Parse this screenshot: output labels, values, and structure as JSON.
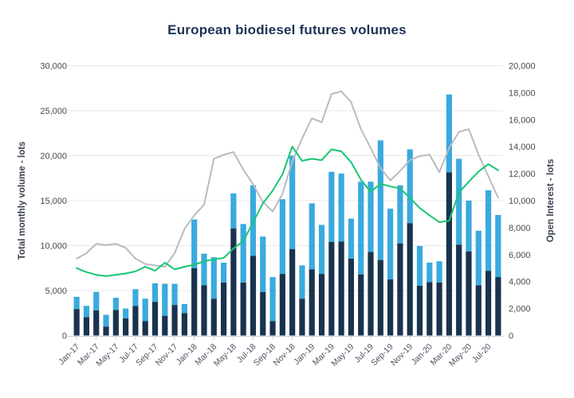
{
  "title": "European biodiesel futures volumes",
  "colors": {
    "dark_bar": "#19334f",
    "light_bar": "#3aaade",
    "green_line": "#17c671",
    "gray_line": "#b7bcc1",
    "grid": "#e8e8e8",
    "axis_line": "#cccccc",
    "tick_text": "#4a4a4a",
    "title_text": "#1e3355",
    "axis_title_text": "#3a4354"
  },
  "chart_data": {
    "type": "bar",
    "subtype": "stacked-bars-with-lines",
    "title": "European biodiesel futures volumes",
    "grid": "horizontal-only",
    "legend": "none",
    "categories": [
      "Jan-17",
      "Feb-17",
      "Mar-17",
      "Apr-17",
      "May-17",
      "Jun-17",
      "Jul-17",
      "Aug-17",
      "Sep-17",
      "Oct-17",
      "Nov-17",
      "Dec-17",
      "Jan-18",
      "Feb-18",
      "Mar-18",
      "Apr-18",
      "May-18",
      "Jun-18",
      "Jul-18",
      "Aug-18",
      "Sep-18",
      "Oct-18",
      "Nov-18",
      "Dec-18",
      "Jan-19",
      "Feb-19",
      "Mar-19",
      "Apr-19",
      "May-19",
      "Jun-19",
      "Jul-19",
      "Aug-19",
      "Sep-19",
      "Oct-19",
      "Nov-19",
      "Dec-19",
      "Jan-20",
      "Feb-20",
      "Mar-20",
      "Apr-20",
      "May-20",
      "Jun-20",
      "Jul-20",
      "Aug-20"
    ],
    "x_tick_labels": [
      "Jan-17",
      "Mar-17",
      "May-17",
      "Jul-17",
      "Sep-17",
      "Nov-17",
      "Jan-18",
      "Mar-18",
      "May-18",
      "Jul-18",
      "Sep-18",
      "Nov-18",
      "Jan-19",
      "Mar-19",
      "May-19",
      "Jul-19",
      "Sep-19",
      "Nov-19",
      "Jan-20",
      "Mar-20",
      "May-20",
      "Jul-20"
    ],
    "left_axis": {
      "label": "Total monthly volume - lots",
      "min": 0,
      "max": 30000,
      "step": 5000,
      "tick_labels": [
        "0",
        "5,000",
        "10,000",
        "15,000",
        "20,000",
        "25,000",
        "30,000"
      ]
    },
    "right_axis": {
      "label": "Open Interest - lots",
      "min": 0,
      "max": 20000,
      "step": 2000,
      "tick_labels": [
        "0",
        "2,000",
        "4,000",
        "6,000",
        "8,000",
        "10,000",
        "12,000",
        "14,000",
        "16,000",
        "18,000",
        "20,000"
      ]
    },
    "bar_series": [
      {
        "name": "volume-dark-navy",
        "axis": "left",
        "color": "#19334f",
        "values": [
          2950,
          2050,
          2800,
          1000,
          2850,
          1900,
          3300,
          1600,
          3750,
          2200,
          3400,
          2500,
          7500,
          5600,
          4100,
          5900,
          11900,
          5900,
          8850,
          4850,
          1600,
          6850,
          9600,
          4100,
          7350,
          6850,
          10400,
          10450,
          8550,
          6800,
          9300,
          8400,
          6250,
          10250,
          12500,
          5550,
          5950,
          5900,
          18150,
          10100,
          9350,
          5600,
          7200,
          6500
        ]
      },
      {
        "name": "volume-light-blue",
        "axis": "left",
        "color": "#3aaade",
        "values": [
          1350,
          1250,
          2050,
          1300,
          1350,
          1100,
          1850,
          2500,
          2050,
          3550,
          2350,
          1000,
          5400,
          3500,
          4600,
          2200,
          3900,
          6500,
          7850,
          6150,
          4900,
          8300,
          10400,
          3700,
          7350,
          5450,
          7800,
          7550,
          4450,
          10300,
          7800,
          13300,
          7850,
          6450,
          8200,
          4400,
          2150,
          2350,
          8650,
          9550,
          5650,
          6050,
          8950,
          6900
        ]
      }
    ],
    "line_series": [
      {
        "name": "open-interest-gray",
        "axis": "right",
        "color": "#b7bcc1",
        "values": [
          5700,
          6100,
          6800,
          6700,
          6800,
          6500,
          5700,
          5300,
          5200,
          5100,
          6100,
          7900,
          8900,
          9700,
          13100,
          13400,
          13600,
          12300,
          11200,
          9900,
          9200,
          10500,
          12900,
          14600,
          16100,
          15800,
          17900,
          18100,
          17300,
          15300,
          13900,
          12400,
          11500,
          12200,
          13000,
          13300,
          13400,
          12100,
          13900,
          15100,
          15300,
          13400,
          11800,
          10200
        ]
      },
      {
        "name": "open-interest-green",
        "axis": "right",
        "color": "#17c671",
        "values": [
          5000,
          4700,
          4500,
          4400,
          4500,
          4600,
          4750,
          5100,
          4800,
          5400,
          4900,
          5100,
          5250,
          5500,
          5650,
          5750,
          6450,
          7000,
          8400,
          9800,
          10750,
          11950,
          14000,
          12950,
          13100,
          13000,
          13800,
          13650,
          12850,
          11550,
          10650,
          11250,
          11050,
          10900,
          10200,
          9450,
          8900,
          8400,
          8500,
          10600,
          11400,
          12150,
          12700,
          12250
        ]
      }
    ]
  }
}
